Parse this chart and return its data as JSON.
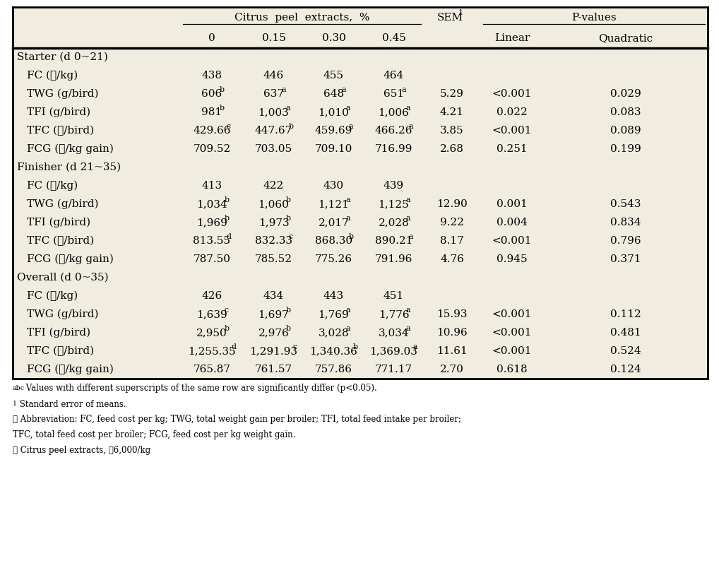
{
  "bg_color": "#f0ede0",
  "font_size": 11,
  "rows": [
    {
      "label": "Starter (d 0~21)",
      "section": true,
      "vals": [
        "",
        "",
        "",
        "",
        "",
        "",
        ""
      ]
    },
    {
      "label": " FC (₩/kg)",
      "section": false,
      "vals": [
        "438",
        "446",
        "455",
        "464",
        "",
        "",
        ""
      ]
    },
    {
      "label": " TWG (g/bird)",
      "section": false,
      "vals": [
        [
          "606",
          "b"
        ],
        [
          "637",
          "a"
        ],
        [
          "648",
          "a"
        ],
        [
          "651",
          "a"
        ],
        "5.29",
        "<0.001",
        "0.029"
      ]
    },
    {
      "label": " TFI (g/bird)",
      "section": false,
      "vals": [
        [
          "981",
          "b"
        ],
        [
          "1,003",
          "a"
        ],
        [
          "1,010",
          "a"
        ],
        [
          "1,006",
          "a"
        ],
        "4.21",
        "0.022",
        "0.083"
      ]
    },
    {
      "label": " TFC (₩/bird)",
      "section": false,
      "vals": [
        [
          "429.66",
          "c"
        ],
        [
          "447.67",
          "b"
        ],
        [
          "459.69",
          "a"
        ],
        [
          "466.26",
          "a"
        ],
        "3.85",
        "<0.001",
        "0.089"
      ]
    },
    {
      "label": " FCG (₩/kg gain)",
      "section": false,
      "vals": [
        "709.52",
        "703.05",
        "709.10",
        "716.99",
        "2.68",
        "0.251",
        "0.199"
      ]
    },
    {
      "label": "Finisher (d 21~35)",
      "section": true,
      "vals": [
        "",
        "",
        "",
        "",
        "",
        "",
        ""
      ]
    },
    {
      "label": " FC (₩/kg)",
      "section": false,
      "vals": [
        "413",
        "422",
        "430",
        "439",
        "",
        "",
        ""
      ]
    },
    {
      "label": " TWG (g/bird)",
      "section": false,
      "vals": [
        [
          "1,034",
          "b"
        ],
        [
          "1,060",
          "b"
        ],
        [
          "1,121",
          "a"
        ],
        [
          "1,125",
          "a"
        ],
        "12.90",
        "0.001",
        "0.543"
      ]
    },
    {
      "label": " TFI (g/bird)",
      "section": false,
      "vals": [
        [
          "1,969",
          "b"
        ],
        [
          "1,973",
          "b"
        ],
        [
          "2,017",
          "a"
        ],
        [
          "2,028",
          "a"
        ],
        "9.22",
        "0.004",
        "0.834"
      ]
    },
    {
      "label": " TFC (₩/bird)",
      "section": false,
      "vals": [
        [
          "813.55",
          "d"
        ],
        [
          "832.33",
          "c"
        ],
        [
          "868.30",
          "b"
        ],
        [
          "890.21",
          "a"
        ],
        "8.17",
        "<0.001",
        "0.796"
      ]
    },
    {
      "label": " FCG (₩/kg gain)",
      "section": false,
      "vals": [
        "787.50",
        "785.52",
        "775.26",
        "791.96",
        "4.76",
        "0.945",
        "0.371"
      ]
    },
    {
      "label": "Overall (d 0~35)",
      "section": true,
      "vals": [
        "",
        "",
        "",
        "",
        "",
        "",
        ""
      ]
    },
    {
      "label": " FC (₩/kg)",
      "section": false,
      "vals": [
        "426",
        "434",
        "443",
        "451",
        "",
        "",
        ""
      ]
    },
    {
      "label": " TWG (g/bird)",
      "section": false,
      "vals": [
        [
          "1,639",
          "c"
        ],
        [
          "1,697",
          "b"
        ],
        [
          "1,769",
          "a"
        ],
        [
          "1,776",
          "a"
        ],
        "15.93",
        "<0.001",
        "0.112"
      ]
    },
    {
      "label": " TFI (g/bird)",
      "section": false,
      "vals": [
        [
          "2,950",
          "b"
        ],
        [
          "2,976",
          "b"
        ],
        [
          "3,028",
          "a"
        ],
        [
          "3,034",
          "a"
        ],
        "10.96",
        "<0.001",
        "0.481"
      ]
    },
    {
      "label": " TFC (₩/bird)",
      "section": false,
      "vals": [
        [
          "1,255.35",
          "d"
        ],
        [
          "1,291.93",
          "c"
        ],
        [
          "1,340.36",
          "b"
        ],
        [
          "1,369.03",
          "a"
        ],
        "11.61",
        "<0.001",
        "0.524"
      ]
    },
    {
      "label": " FCG (₩/kg gain)",
      "section": false,
      "vals": [
        "765.87",
        "761.57",
        "757.86",
        "771.17",
        "2.70",
        "0.618",
        "0.124"
      ]
    }
  ],
  "footnotes": [
    {
      "text": "abc",
      "sup": true,
      "rest": " Values with different superscripts of the same row are significantly differ (p<0.05)."
    },
    {
      "text": "1",
      "sup": true,
      "rest": " Standard error of means."
    },
    {
      "text": "※",
      "sup": false,
      "rest": " Abbreviation: FC, feed cost per kg; TWG, total weight gain per broiler; TFI, total feed intake per broiler;"
    },
    {
      "text": "",
      "sup": false,
      "rest": "TFC, total feed cost per broiler; FCG, feed cost per kg weight gain."
    },
    {
      "text": "※",
      "sup": false,
      "rest": " Citrus peel extracts, ₩6,000/kg"
    }
  ]
}
